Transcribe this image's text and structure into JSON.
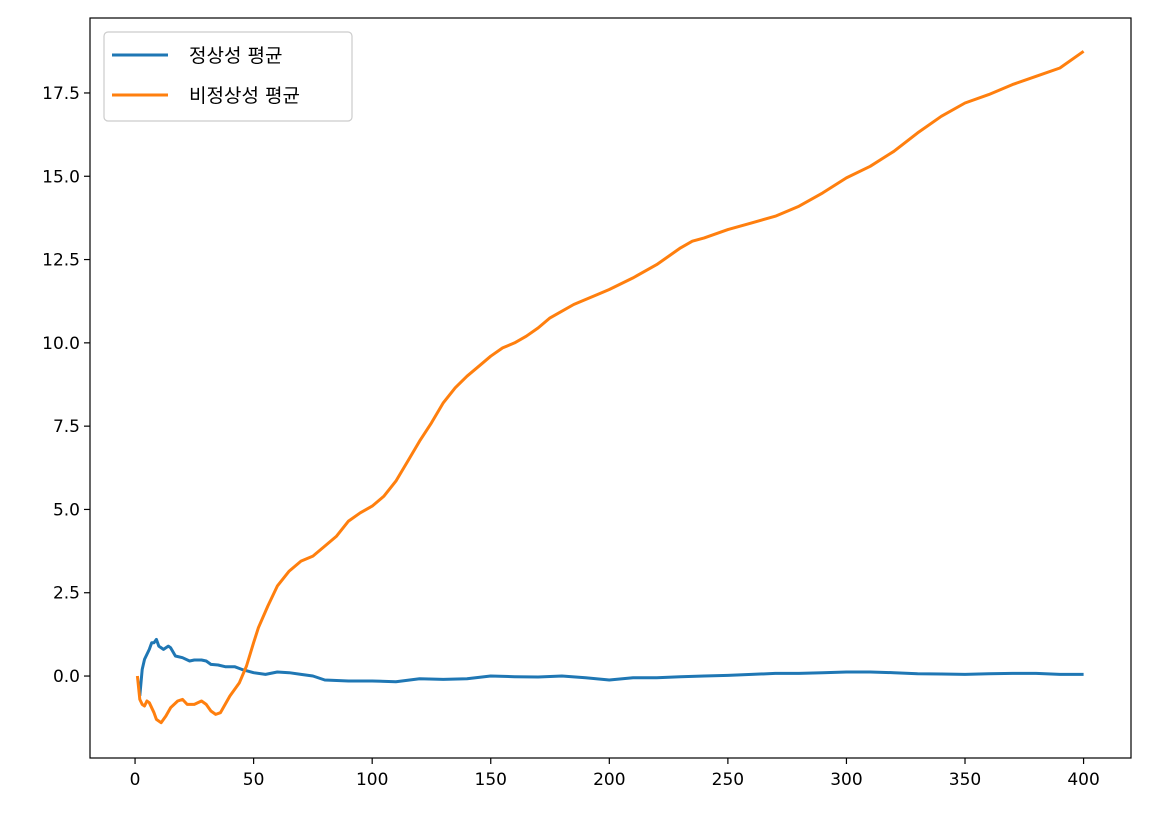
{
  "chart_data": {
    "type": "line",
    "title": "",
    "xlabel": "",
    "ylabel": "",
    "xlim": [
      -19,
      420
    ],
    "ylim": [
      -2.46,
      19.75
    ],
    "xticks": [
      0,
      50,
      100,
      150,
      200,
      250,
      300,
      350,
      400
    ],
    "xtick_labels": [
      "0",
      "50",
      "100",
      "150",
      "200",
      "250",
      "300",
      "350",
      "400"
    ],
    "yticks": [
      0,
      2.5,
      5,
      7.5,
      10,
      12.5,
      15,
      17.5
    ],
    "ytick_labels": [
      "0.0",
      "2.5",
      "5.0",
      "7.5",
      "10.0",
      "12.5",
      "15.0",
      "17.5"
    ],
    "grid": false,
    "legend_position": "top-left",
    "series": [
      {
        "name": "정상성 평균",
        "color": "#1f77b4",
        "x": [
          2,
          3,
          4,
          6,
          7,
          8,
          9,
          10,
          12,
          14,
          15,
          17,
          20,
          23,
          25,
          28,
          30,
          32,
          35,
          38,
          42,
          45,
          50,
          55,
          60,
          65,
          70,
          75,
          80,
          90,
          100,
          110,
          120,
          130,
          140,
          150,
          160,
          170,
          180,
          190,
          200,
          210,
          220,
          230,
          240,
          250,
          260,
          270,
          280,
          290,
          300,
          310,
          320,
          330,
          340,
          350,
          360,
          370,
          380,
          390,
          400
        ],
        "y": [
          -0.6,
          0.2,
          0.5,
          0.8,
          1.0,
          1.0,
          1.1,
          0.9,
          0.8,
          0.9,
          0.85,
          0.6,
          0.55,
          0.45,
          0.48,
          0.48,
          0.45,
          0.35,
          0.33,
          0.28,
          0.28,
          0.2,
          0.1,
          0.05,
          0.12,
          0.1,
          0.05,
          0.0,
          -0.12,
          -0.15,
          -0.15,
          -0.17,
          -0.08,
          -0.1,
          -0.08,
          0.0,
          -0.02,
          -0.03,
          0.0,
          -0.05,
          -0.12,
          -0.05,
          -0.05,
          -0.02,
          0.0,
          0.02,
          0.05,
          0.08,
          0.08,
          0.1,
          0.12,
          0.12,
          0.1,
          0.07,
          0.06,
          0.05,
          0.07,
          0.08,
          0.08,
          0.05,
          0.05
        ]
      },
      {
        "name": "비정상성 평균",
        "color": "#ff7f0e",
        "x": [
          1,
          2,
          3,
          4,
          5,
          6,
          8,
          9,
          11,
          13,
          15,
          18,
          20,
          22,
          25,
          28,
          30,
          32,
          34,
          36,
          40,
          44,
          47,
          50,
          52,
          56,
          60,
          65,
          70,
          75,
          80,
          85,
          90,
          95,
          100,
          105,
          110,
          115,
          120,
          125,
          130,
          135,
          140,
          145,
          150,
          155,
          160,
          165,
          170,
          175,
          180,
          185,
          190,
          195,
          200,
          210,
          220,
          230,
          235,
          240,
          250,
          260,
          270,
          280,
          290,
          300,
          310,
          320,
          330,
          340,
          350,
          360,
          370,
          380,
          390,
          400
        ],
        "y": [
          0.0,
          -0.7,
          -0.85,
          -0.9,
          -0.75,
          -0.8,
          -1.1,
          -1.3,
          -1.4,
          -1.2,
          -0.95,
          -0.75,
          -0.7,
          -0.85,
          -0.85,
          -0.75,
          -0.85,
          -1.05,
          -1.15,
          -1.1,
          -0.6,
          -0.2,
          0.3,
          1.0,
          1.45,
          2.1,
          2.7,
          3.15,
          3.45,
          3.6,
          3.9,
          4.2,
          4.65,
          4.9,
          5.1,
          5.4,
          5.85,
          6.45,
          7.05,
          7.6,
          8.2,
          8.65,
          9.0,
          9.3,
          9.6,
          9.85,
          10.0,
          10.2,
          10.45,
          10.75,
          10.95,
          11.15,
          11.3,
          11.45,
          11.6,
          11.95,
          12.35,
          12.85,
          13.05,
          13.15,
          13.4,
          13.6,
          13.8,
          14.1,
          14.5,
          14.95,
          15.3,
          15.75,
          16.3,
          16.8,
          17.2,
          17.45,
          17.75,
          18.0,
          18.25,
          18.75
        ]
      }
    ]
  }
}
